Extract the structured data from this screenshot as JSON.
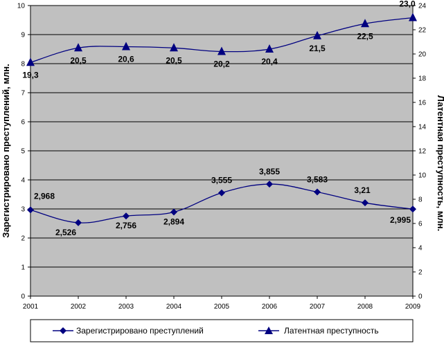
{
  "chart_data": {
    "type": "line",
    "x": [
      "2001",
      "2002",
      "2003",
      "2004",
      "2005",
      "2006",
      "2007",
      "2008",
      "2009"
    ],
    "y1label": "Зарегистрировано преступлений, млн.",
    "y2label": "Латентная преступность, млн.",
    "y1lim": [
      0,
      10
    ],
    "y1ticks": [
      "0",
      "1",
      "2",
      "3",
      "4",
      "5",
      "6",
      "7",
      "8",
      "9",
      "10"
    ],
    "y2lim": [
      0,
      24
    ],
    "y2ticks": [
      "0",
      "2",
      "4",
      "6",
      "8",
      "10",
      "12",
      "14",
      "16",
      "18",
      "20",
      "22",
      "24"
    ],
    "grid": "horizontal",
    "legend_position": "bottom",
    "series": [
      {
        "name": "Зарегистрировано преступлений",
        "axis": "left",
        "marker": "diamond",
        "color": "#000080",
        "values": [
          2.968,
          2.526,
          2.756,
          2.894,
          3.555,
          3.855,
          3.583,
          3.21,
          2.995
        ],
        "labels": [
          "2,968",
          "2,526",
          "2,756",
          "2,894",
          "3,555",
          "3,855",
          "3,583",
          "3,21",
          "2,995"
        ]
      },
      {
        "name": "Латентная преступность",
        "axis": "right",
        "marker": "triangle",
        "color": "#000080",
        "values": [
          19.3,
          20.5,
          20.6,
          20.5,
          20.2,
          20.4,
          21.5,
          22.5,
          23.0
        ],
        "labels": [
          "19,3",
          "20,5",
          "20,6",
          "20,5",
          "20,2",
          "20,4",
          "21,5",
          "22,5",
          "23,0"
        ]
      }
    ],
    "colors": {
      "plot_background": "#c0c0c0",
      "grid": "#000000",
      "line": "#000080"
    }
  }
}
